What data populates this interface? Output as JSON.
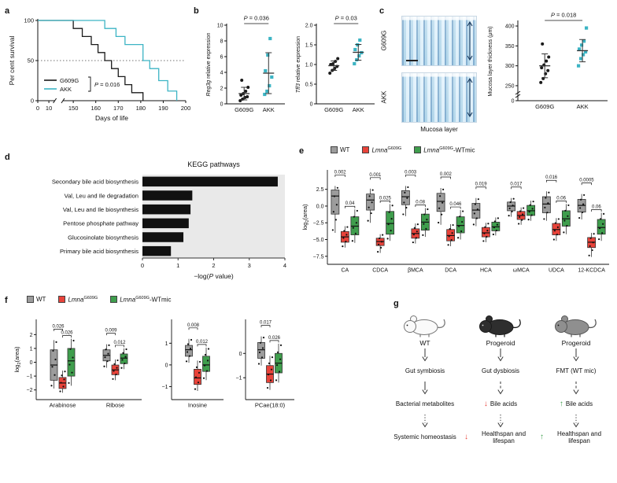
{
  "labels": {
    "a": "a",
    "b": "b",
    "c": "c",
    "d": "d",
    "e": "e",
    "f": "f",
    "g": "g"
  },
  "colors": {
    "akk_teal": "#3cb4c4",
    "wt_gray": "#9c9c9c",
    "mut_red": "#e8433a",
    "fmt_green": "#3f9e4d",
    "bar_black": "#111111",
    "plot_bg_gray": "#e9e9e9"
  },
  "legend": {
    "items": [
      {
        "plain": "WT",
        "italic": "",
        "sup": "",
        "rest": ""
      },
      {
        "plain": "",
        "italic": "Lmna",
        "sup": "G609G",
        "rest": ""
      },
      {
        "plain": "",
        "italic": "Lmna",
        "sup": "G609G",
        "rest": "-WTmic"
      }
    ],
    "colors": [
      "#9c9c9c",
      "#e8433a",
      "#3f9e4d"
    ]
  },
  "panel_a": {
    "chart_type": "step-survival",
    "ylabel": "Per cent survival",
    "xlabel": "Days of life",
    "yticks": [
      "0",
      "50",
      "100"
    ],
    "ytickv": [
      0,
      50,
      100
    ],
    "xticks": [
      "0",
      "10",
      "150",
      "160",
      "170",
      "180",
      "190",
      "200"
    ],
    "xtickv": [
      0,
      10,
      150,
      160,
      170,
      180,
      190,
      200
    ],
    "p": "P = 0.016",
    "median_line": 50,
    "series": [
      {
        "name": "G609G",
        "color": "#1a1a1a",
        "events": [
          [
            150,
            90
          ],
          [
            154,
            80
          ],
          [
            158,
            70
          ],
          [
            161,
            60
          ],
          [
            164,
            50
          ],
          [
            167,
            40
          ],
          [
            170,
            30
          ],
          [
            173,
            20
          ],
          [
            176,
            10
          ],
          [
            181,
            0
          ]
        ]
      },
      {
        "name": "AKK",
        "color": "#3cb4c4",
        "events": [
          [
            164,
            90
          ],
          [
            169,
            80
          ],
          [
            173,
            70
          ],
          [
            181,
            50
          ],
          [
            184,
            40
          ],
          [
            188,
            25
          ],
          [
            192,
            12
          ],
          [
            196,
            0
          ]
        ]
      }
    ]
  },
  "panel_b": {
    "plots": [
      {
        "chart_type": "dot",
        "ylabel_parts": [
          {
            "t": "Reg3g",
            "it": 1
          },
          {
            "t": " relative expression"
          }
        ],
        "ylim": [
          0,
          10
        ],
        "yticks": [
          "0",
          "2",
          "4",
          "6",
          "8",
          "10"
        ],
        "ytickv": [
          0,
          2,
          4,
          6,
          8,
          10
        ],
        "p": "P = 0.036",
        "groups": [
          {
            "label": "G609G",
            "marker": "circle",
            "color": "#1a1a1a",
            "points": [
              0.4,
              0.6,
              0.8,
              0.9,
              1.1,
              1.3,
              1.6,
              2.1,
              3.0
            ],
            "mean": 1.3,
            "sd": 0.8
          },
          {
            "label": "AKK",
            "marker": "square",
            "color": "#3cb4c4",
            "points": [
              1.2,
              1.6,
              2.3,
              3.4,
              4.2,
              6.2,
              8.3
            ],
            "mean": 3.9,
            "sd": 2.6
          }
        ]
      },
      {
        "chart_type": "dot",
        "ylabel_parts": [
          {
            "t": "Tff3",
            "it": 1
          },
          {
            "t": " relative expression"
          }
        ],
        "ylim": [
          0,
          2
        ],
        "yticks": [
          "0",
          "0.5",
          "1.0",
          "1.5",
          "2.0"
        ],
        "ytickv": [
          0,
          0.5,
          1,
          1.5,
          2
        ],
        "p": "P = 0.03",
        "groups": [
          {
            "label": "G609G",
            "marker": "circle",
            "color": "#1a1a1a",
            "points": [
              0.78,
              0.85,
              0.9,
              0.95,
              1.0,
              1.02,
              1.08,
              1.15
            ],
            "mean": 0.97,
            "sd": 0.12
          },
          {
            "label": "AKK",
            "marker": "square",
            "color": "#3cb4c4",
            "points": [
              1.02,
              1.12,
              1.22,
              1.3,
              1.38,
              1.5,
              1.62
            ],
            "mean": 1.31,
            "sd": 0.2
          }
        ]
      }
    ]
  },
  "panel_c": {
    "image_labels": [
      "G609G",
      "AKK"
    ],
    "caption": "Mucosa layer",
    "plot": {
      "chart_type": "dot",
      "ylabel_parts": [
        {
          "t": "Mucosa layer thickness (μm)"
        }
      ],
      "axis_break": true,
      "vmin": 240,
      "vmax": 410,
      "yticks": [
        "0",
        "250",
        "300",
        "350",
        "400"
      ],
      "ytickv": [
        0,
        250,
        300,
        350,
        400
      ],
      "p": "P = 0.018",
      "groups": [
        {
          "label": "G609G",
          "marker": "circle",
          "color": "#1a1a1a",
          "points": [
            258,
            268,
            280,
            288,
            295,
            302,
            312,
            322,
            355
          ],
          "mean": 300,
          "sd": 30
        },
        {
          "label": "AKK",
          "marker": "square",
          "color": "#3cb4c4",
          "points": [
            300,
            318,
            328,
            335,
            342,
            352,
            362,
            395
          ],
          "mean": 338,
          "sd": 28
        }
      ]
    }
  },
  "panel_d": {
    "chart_type": "bar-horizontal",
    "title": "KEGG pathways",
    "xlabel_parts": [
      {
        "t": "−log("
      },
      {
        "t": "P",
        "it": 1
      },
      {
        "t": " value)"
      }
    ],
    "categories": [
      "Secondary bile acid biosynthesis",
      "Val, Leu and Ile degradation",
      "Val, Leu and Ile biosynthesis",
      "Pentose phosphate pathway",
      "Glucosinolate biosynthesis",
      "Primary bile acid biosynthesis"
    ],
    "values": [
      3.8,
      1.4,
      1.35,
      1.3,
      1.15,
      0.8
    ],
    "xticks": [
      "0",
      "1",
      "2",
      "3",
      "4"
    ],
    "xtickv": [
      0,
      1,
      2,
      3,
      4
    ],
    "xmax": 4,
    "bar_color": "#111111",
    "bg": "#e9e9e9"
  },
  "panel_e": {
    "chart_type": "grouped-box",
    "ylabel_parts": [
      {
        "t": "log"
      },
      {
        "t": "2",
        "dy": 2,
        "fs": 5.5
      },
      {
        "t": "(area)",
        "dy": -2
      }
    ],
    "ylim": [
      -8.7,
      5.4
    ],
    "yticks": [
      2.5,
      0,
      -2.5,
      -5,
      -7.5
    ],
    "dec": 1,
    "group_colors": [
      "#9c9c9c",
      "#e8433a",
      "#3f9e4d"
    ],
    "categories": [
      {
        "name": "CA",
        "boxes": [
          [
            -4.0,
            -1.2,
            1.5,
            2.4,
            3.0
          ],
          [
            -6.2,
            -5.4,
            -4.6,
            -3.8,
            -3.0
          ],
          [
            -5.5,
            -4.3,
            -3.0,
            -1.6,
            -0.5
          ]
        ],
        "brackets": [
          {
            "a": 0,
            "b": 1,
            "label": "0.002"
          },
          {
            "a": 1,
            "b": 2,
            "label": "0.04"
          }
        ]
      },
      {
        "name": "CDCA",
        "boxes": [
          [
            -2.5,
            -0.6,
            0.9,
            1.8,
            2.6
          ],
          [
            -7.0,
            -5.9,
            -5.3,
            -4.8,
            -4.2
          ],
          [
            -5.2,
            -4.2,
            -2.6,
            -0.8,
            0.3
          ]
        ],
        "brackets": [
          {
            "a": 0,
            "b": 1,
            "label": "0.001"
          },
          {
            "a": 1,
            "b": 2,
            "label": "0.025"
          }
        ]
      },
      {
        "name": "βMCA",
        "boxes": [
          [
            -1.5,
            0.2,
            1.4,
            2.3,
            3.0
          ],
          [
            -5.6,
            -4.8,
            -4.1,
            -3.4,
            -2.6
          ],
          [
            -4.6,
            -3.6,
            -2.4,
            -1.2,
            -0.3
          ]
        ],
        "brackets": [
          {
            "a": 0,
            "b": 1,
            "label": "0.003"
          },
          {
            "a": 1,
            "b": 2,
            "label": "0.08"
          }
        ]
      },
      {
        "name": "DCA",
        "boxes": [
          [
            -2.8,
            -0.8,
            0.7,
            1.9,
            2.7
          ],
          [
            -6.0,
            -5.2,
            -4.4,
            -3.5,
            -2.7
          ],
          [
            -5.0,
            -4.0,
            -2.9,
            -1.6,
            -0.6
          ]
        ],
        "brackets": [
          {
            "a": 0,
            "b": 1,
            "label": "0.002"
          },
          {
            "a": 1,
            "b": 2,
            "label": "0.046"
          }
        ]
      },
      {
        "name": "HCA",
        "boxes": [
          [
            -3.0,
            -1.8,
            -0.6,
            0.4,
            1.2
          ],
          [
            -5.4,
            -4.6,
            -4.0,
            -3.2,
            -2.5
          ],
          [
            -4.4,
            -3.7,
            -3.1,
            -2.4,
            -1.7
          ]
        ],
        "brackets": [
          {
            "a": 0,
            "b": 1,
            "label": "0.019"
          }
        ]
      },
      {
        "name": "ωMCA",
        "boxes": [
          [
            -1.6,
            -0.7,
            0.0,
            0.6,
            1.2
          ],
          [
            -2.8,
            -2.0,
            -1.4,
            -0.8,
            -0.2
          ],
          [
            -2.2,
            -1.4,
            -0.7,
            0.1,
            0.8
          ]
        ],
        "brackets": [
          {
            "a": 0,
            "b": 1,
            "label": "0.017"
          }
        ]
      },
      {
        "name": "UDCA",
        "boxes": [
          [
            -2.2,
            -1.0,
            0.3,
            1.4,
            2.2
          ],
          [
            -5.2,
            -4.3,
            -3.5,
            -2.6,
            -1.8
          ],
          [
            -4.2,
            -3.0,
            -1.9,
            -0.7,
            0.3
          ]
        ],
        "brackets": [
          {
            "a": 0,
            "b": 1,
            "label": "0.016"
          },
          {
            "a": 1,
            "b": 2,
            "label": "0.06"
          }
        ]
      },
      {
        "name": "12-KCDCA",
        "boxes": [
          [
            -2.0,
            -0.9,
            0.1,
            1.0,
            1.8
          ],
          [
            -7.6,
            -6.2,
            -5.4,
            -4.7,
            -4.0
          ],
          [
            -5.2,
            -4.2,
            -3.2,
            -2.0,
            -1.0
          ]
        ],
        "brackets": [
          {
            "a": 0,
            "b": 1,
            "label": "0.0005"
          },
          {
            "a": 1,
            "b": 2,
            "label": "0.06"
          }
        ]
      }
    ]
  },
  "panel_f": {
    "chart_type": "grouped-box",
    "ylabel_parts": [
      {
        "t": "log"
      },
      {
        "t": "2",
        "dy": 2,
        "fs": 5.5
      },
      {
        "t": "(area)",
        "dy": -2
      }
    ],
    "group_colors": [
      "#9c9c9c",
      "#e8433a",
      "#3f9e4d"
    ],
    "subplots": [
      {
        "ylim": [
          -2.7,
          3.1
        ],
        "yticks": [
          2,
          1,
          0,
          -1,
          -2
        ],
        "dec": 0,
        "categories": [
          {
            "name": "Arabinose",
            "boxes": [
              [
                -1.9,
                -1.3,
                -0.2,
                0.9,
                1.6
              ],
              [
                -2.2,
                -1.9,
                -1.5,
                -1.1,
                -0.6
              ],
              [
                -1.7,
                -1.0,
                0.1,
                1.0,
                1.7
              ]
            ],
            "brackets": [
              {
                "a": 0,
                "b": 1,
                "label": "0.026"
              },
              {
                "a": 1,
                "b": 2,
                "label": "0.026"
              }
            ]
          },
          {
            "name": "Ribose",
            "boxes": [
              [
                -0.4,
                0.1,
                0.5,
                0.9,
                1.3
              ],
              [
                -1.3,
                -0.9,
                -0.55,
                -0.2,
                0.2
              ],
              [
                -0.5,
                -0.1,
                0.3,
                0.6,
                1.0
              ]
            ],
            "brackets": [
              {
                "a": 0,
                "b": 1,
                "label": "0.009"
              },
              {
                "a": 1,
                "b": 2,
                "label": "0.012"
              }
            ]
          }
        ]
      },
      {
        "ylim": [
          -1.6,
          2.1
        ],
        "yticks": [
          1,
          0,
          -1
        ],
        "dec": 0,
        "categories": [
          {
            "name": "Inosine",
            "boxes": [
              [
                0.1,
                0.4,
                0.7,
                0.9,
                1.2
              ],
              [
                -1.2,
                -0.9,
                -0.6,
                -0.2,
                0.2
              ],
              [
                -0.7,
                -0.3,
                0.0,
                0.4,
                0.8
              ]
            ],
            "brackets": [
              {
                "a": 0,
                "b": 1,
                "label": "0.008"
              },
              {
                "a": 1,
                "b": 2,
                "label": "0.012"
              }
            ]
          }
        ]
      },
      {
        "ylim": [
          -1.9,
          1.4
        ],
        "yticks": [
          0,
          -1
        ],
        "dec": 0,
        "categories": [
          {
            "name": "PCae(18:0)",
            "boxes": [
              [
                -0.5,
                -0.2,
                0.15,
                0.45,
                0.7
              ],
              [
                -1.5,
                -1.2,
                -0.85,
                -0.5,
                -0.1
              ],
              [
                -1.2,
                -0.8,
                -0.4,
                0.0,
                0.4
              ]
            ],
            "brackets": [
              {
                "a": 0,
                "b": 1,
                "label": "0.017"
              },
              {
                "a": 1,
                "b": 2,
                "label": "0.026"
              }
            ]
          }
        ]
      }
    ]
  },
  "panel_g": {
    "marker_colors": {
      "down": "#e8433a",
      "up": "#3f9e4d"
    },
    "marker_glyphs": {
      "down": "↓",
      "up": "↑"
    },
    "columns": [
      {
        "mouse": "wt",
        "title": "WT",
        "steps": [
          {
            "text": "Gut symbiosis",
            "arrow": "solid"
          },
          {
            "text": "Bacterial metabolites",
            "arrow": "solid"
          },
          {
            "text": "Systemic homeostasis",
            "arrow": "dotted"
          }
        ]
      },
      {
        "mouse": "dark",
        "title": "Progeroid",
        "steps": [
          {
            "text": "Gut dysbiosis",
            "arrow": "solid"
          },
          {
            "text": "Bile acids",
            "arrow": "dashed",
            "marker": "down"
          },
          {
            "text": "Healthspan and lifespan",
            "arrow": "dotted",
            "marker": "down"
          }
        ]
      },
      {
        "mouse": "gray",
        "title": "Progeroid",
        "steps": [
          {
            "text": "FMT (WT mic)",
            "arrow": "solid"
          },
          {
            "text": "Bile acids",
            "arrow": "dashed",
            "marker": "up"
          },
          {
            "text": "Healthspan and lifespan",
            "arrow": "dotted",
            "marker": "up"
          }
        ]
      }
    ]
  }
}
